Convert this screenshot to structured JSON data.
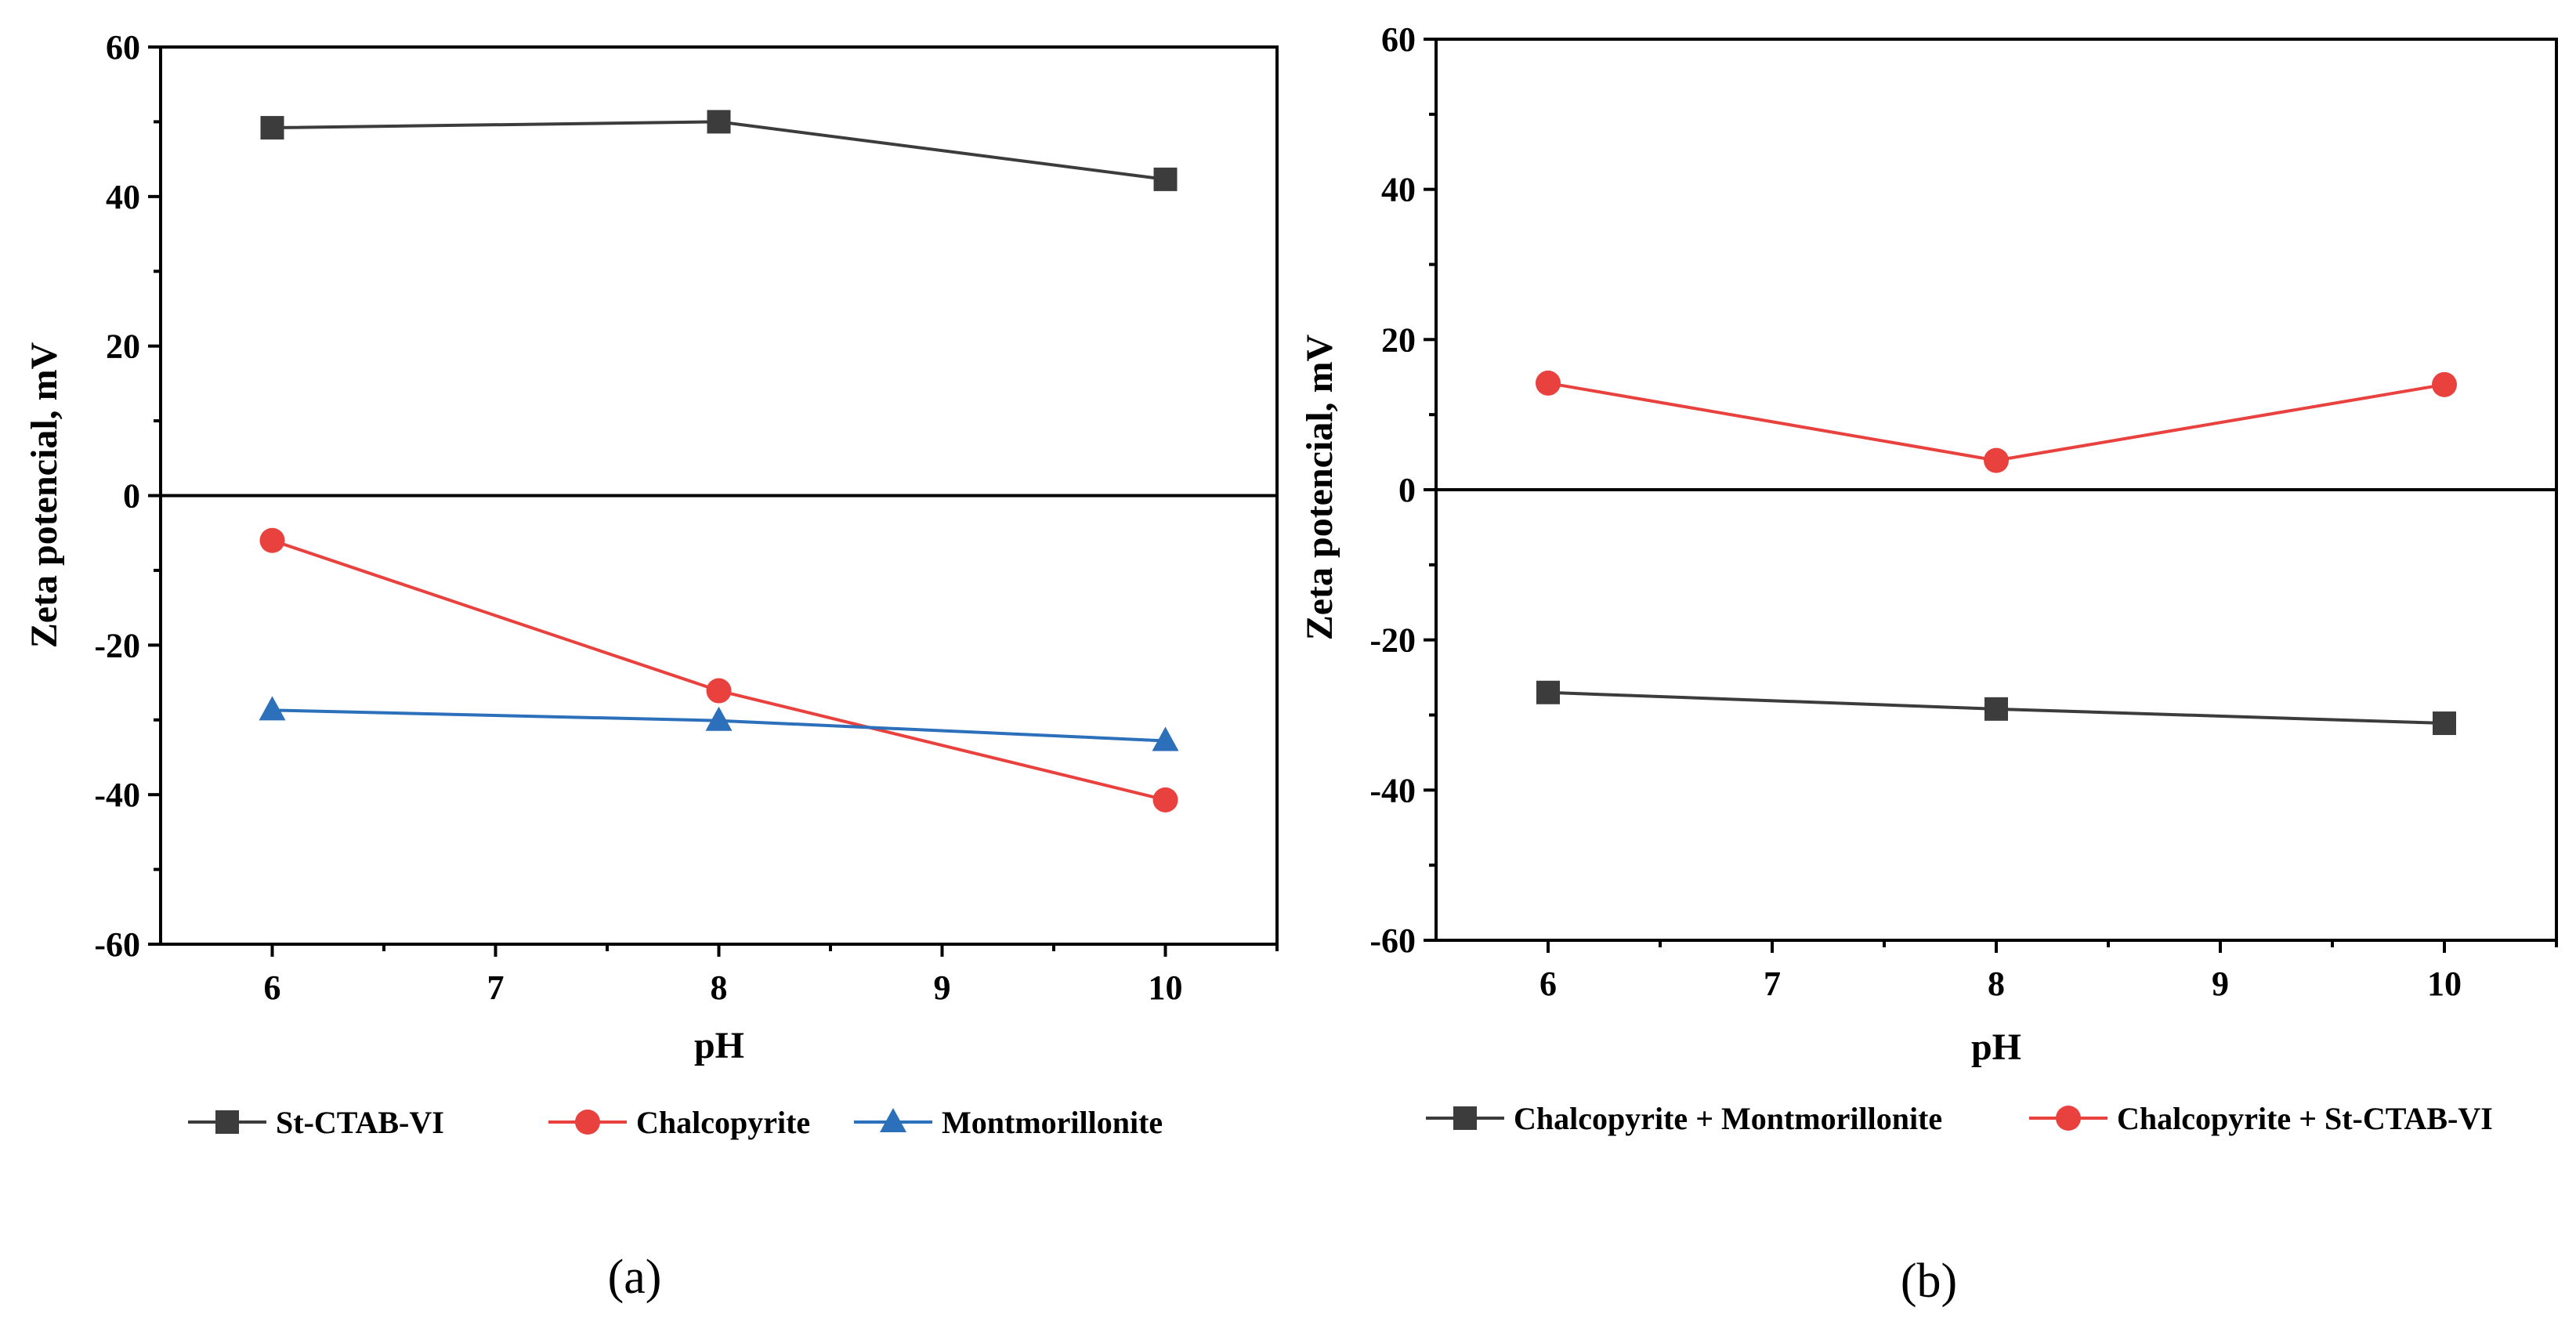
{
  "colors": {
    "dark_gray": "#3c3c3c",
    "red": "#e8413e",
    "blue": "#2c6fbb",
    "axis": "#000000"
  },
  "chart_data": [
    {
      "type": "line",
      "panel_label": "(a)",
      "xlabel": "pH",
      "ylabel": "Zeta potencial, mV",
      "xlim": [
        5.5,
        10.5
      ],
      "ylim": [
        -60,
        60
      ],
      "x_ticks": [
        6,
        7,
        8,
        9,
        10
      ],
      "y_ticks": [
        -60,
        -40,
        -20,
        0,
        20,
        40,
        60
      ],
      "x_tick_labels": [
        "6",
        "7",
        "8",
        "9",
        "10"
      ],
      "y_tick_labels": [
        "-60",
        "-40",
        "-20",
        "0",
        "20",
        "40",
        "60"
      ],
      "zero_line": true,
      "grid": false,
      "legend_position": "bottom",
      "x": [
        6,
        8,
        10
      ],
      "series": [
        {
          "name": "St-CTAB-VI",
          "values": [
            49.2,
            50.0,
            42.3
          ],
          "marker": "square",
          "color": "#3c3c3c"
        },
        {
          "name": "Chalcopyrite",
          "values": [
            -6.0,
            -26.1,
            -40.7
          ],
          "marker": "circle",
          "color": "#e8413e"
        },
        {
          "name": "Montmorillonite",
          "values": [
            -28.7,
            -30.1,
            -32.8
          ],
          "marker": "triangle",
          "color": "#2c6fbb"
        }
      ]
    },
    {
      "type": "line",
      "panel_label": "(b)",
      "xlabel": "pH",
      "ylabel": "Zeta potencial, mV",
      "xlim": [
        5.5,
        10.5
      ],
      "ylim": [
        -60,
        60
      ],
      "x_ticks": [
        6,
        7,
        8,
        9,
        10
      ],
      "y_ticks": [
        -60,
        -40,
        -20,
        0,
        20,
        40,
        60
      ],
      "x_tick_labels": [
        "6",
        "7",
        "8",
        "9",
        "10"
      ],
      "y_tick_labels": [
        "-60",
        "-40",
        "-20",
        "0",
        "20",
        "40",
        "60"
      ],
      "zero_line": true,
      "grid": false,
      "legend_position": "bottom",
      "x": [
        6,
        8,
        10
      ],
      "series": [
        {
          "name": "Chalcopyrite + Montmorillonite",
          "values": [
            -27.0,
            -29.2,
            -31.1
          ],
          "marker": "square",
          "color": "#3c3c3c"
        },
        {
          "name": "Chalcopyrite + St-CTAB-VI",
          "values": [
            14.2,
            3.9,
            14.0
          ],
          "marker": "circle",
          "color": "#e8413e"
        }
      ]
    }
  ]
}
